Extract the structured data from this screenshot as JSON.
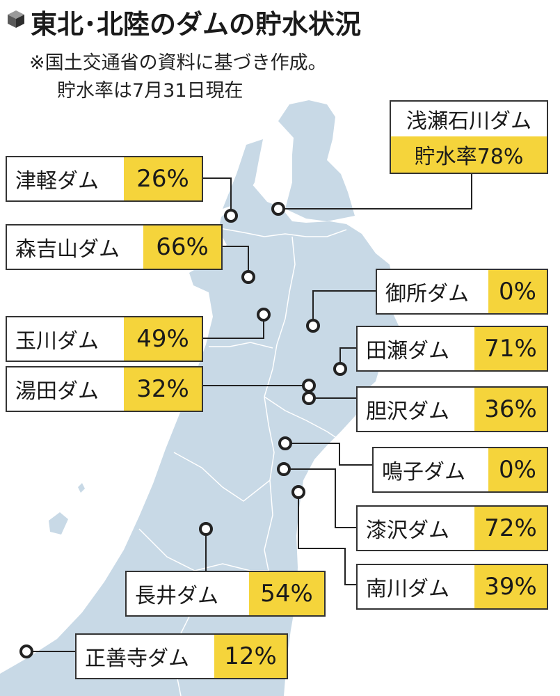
{
  "header": {
    "title": "東北･北陸のダムの貯水状況",
    "note_line1": "※国土交通省の資料に基づき作成。",
    "note_line2": "貯水率は7月31日現在"
  },
  "colors": {
    "land": "#c8d9e6",
    "boundary": "#ffffff",
    "highlight": "#f5d43b",
    "line": "#222222"
  },
  "dams": [
    {
      "id": "asase",
      "name": "浅瀬石川ダム",
      "label": "貯水率78%",
      "rate": 78
    },
    {
      "id": "tsugaru",
      "name": "津軽ダム",
      "label": "26%",
      "rate": 26
    },
    {
      "id": "moriyoshi",
      "name": "森吉山ダム",
      "label": "66%",
      "rate": 66
    },
    {
      "id": "gosho",
      "name": "御所ダム",
      "label": "0%",
      "rate": 0
    },
    {
      "id": "tamagawa",
      "name": "玉川ダム",
      "label": "49%",
      "rate": 49
    },
    {
      "id": "tase",
      "name": "田瀬ダム",
      "label": "71%",
      "rate": 71
    },
    {
      "id": "yuda",
      "name": "湯田ダム",
      "label": "32%",
      "rate": 32
    },
    {
      "id": "isawa",
      "name": "胆沢ダム",
      "label": "36%",
      "rate": 36
    },
    {
      "id": "naruko",
      "name": "鳴子ダム",
      "label": "0%",
      "rate": 0
    },
    {
      "id": "urushizawa",
      "name": "漆沢ダム",
      "label": "72%",
      "rate": 72
    },
    {
      "id": "nanakawa",
      "name": "南川ダム",
      "label": "39%",
      "rate": 39
    },
    {
      "id": "nagai",
      "name": "長井ダム",
      "label": "54%",
      "rate": 54
    },
    {
      "id": "shozenji",
      "name": "正善寺ダム",
      "label": "12%",
      "rate": 12
    }
  ]
}
